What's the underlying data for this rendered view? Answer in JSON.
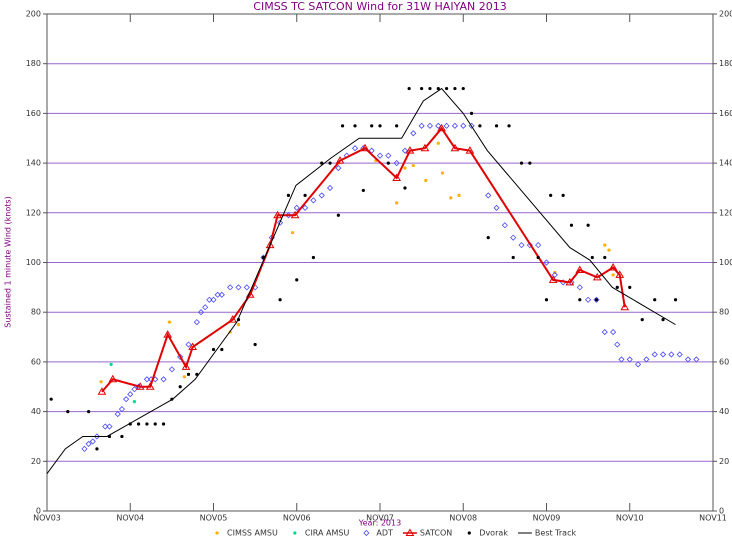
{
  "chart_data": {
    "type": "scatter",
    "title": "CIMSS TC SATCON Wind for  31W HAIYAN 2013",
    "x_label": "Year: 2013",
    "y_label": "Sustained 1 minute Wind (knots)",
    "xlim": [
      3,
      11
    ],
    "xticks": [
      {
        "value": 3,
        "label": "NOV03"
      },
      {
        "value": 4,
        "label": "NOV04"
      },
      {
        "value": 5,
        "label": "NOV05"
      },
      {
        "value": 6,
        "label": "NOV06"
      },
      {
        "value": 7,
        "label": "NOV07"
      },
      {
        "value": 8,
        "label": "NOV08"
      },
      {
        "value": 9,
        "label": "NOV09"
      },
      {
        "value": 10,
        "label": "NOV10"
      },
      {
        "value": 11,
        "label": "NOV11"
      }
    ],
    "ylim": [
      0,
      200
    ],
    "yticks": [
      0,
      20,
      40,
      60,
      80,
      100,
      120,
      140,
      160,
      180,
      200
    ],
    "grid": true,
    "series": [
      {
        "name": "CIMSS AMSU",
        "color": "#ffb000",
        "marker": "dot",
        "line": false,
        "x": [
          3.65,
          4.47,
          4.65,
          5.2,
          5.3,
          5.95,
          6.5,
          6.95,
          7.2,
          7.3,
          7.4,
          7.55,
          7.7,
          7.75,
          7.85,
          7.95,
          9.1,
          9.7,
          9.75,
          9.8
        ],
        "values": [
          52,
          76,
          54,
          72,
          75,
          112,
          140,
          141,
          124,
          138,
          139,
          133,
          148,
          136,
          126,
          127,
          96,
          107,
          105,
          95
        ]
      },
      {
        "name": "CIRA AMSU",
        "color": "#00d890",
        "marker": "dot",
        "line": false,
        "x": [
          3.77,
          4.05
        ],
        "values": [
          59,
          44
        ]
      },
      {
        "name": "ADT",
        "color": "#4848ff",
        "marker": "diamond",
        "line": false,
        "x": [
          3.45,
          3.5,
          3.55,
          3.6,
          3.7,
          3.75,
          3.85,
          3.9,
          3.95,
          4.0,
          4.05,
          4.1,
          4.2,
          4.25,
          4.3,
          4.4,
          4.5,
          4.6,
          4.7,
          4.8,
          4.85,
          4.9,
          4.95,
          5.0,
          5.05,
          5.1,
          5.2,
          5.3,
          5.4,
          5.5,
          5.6,
          5.7,
          5.8,
          5.9,
          6.0,
          6.1,
          6.2,
          6.3,
          6.4,
          6.5,
          6.6,
          6.7,
          6.8,
          6.9,
          7.0,
          7.1,
          7.2,
          7.3,
          7.4,
          7.5,
          7.6,
          7.7,
          7.8,
          7.9,
          8.0,
          8.1,
          8.3,
          8.4,
          8.5,
          8.6,
          8.7,
          8.8,
          8.9,
          9.0,
          9.1,
          9.2,
          9.3,
          9.4,
          9.5,
          9.6,
          9.7,
          9.8,
          9.85,
          9.9,
          10.0,
          10.1,
          10.2,
          10.3,
          10.4,
          10.5,
          10.6,
          10.7,
          10.8
        ],
        "values": [
          25,
          27,
          28,
          30,
          34,
          34,
          39,
          41,
          45,
          47,
          49,
          50,
          53,
          53,
          53,
          53,
          57,
          62,
          67,
          76,
          80,
          82,
          85,
          85,
          87,
          87,
          90,
          90,
          90,
          90,
          102,
          110,
          116,
          119,
          122,
          122,
          125,
          127,
          130,
          138,
          143,
          146,
          146,
          145,
          143,
          143,
          140,
          145,
          152,
          155,
          155,
          155,
          155,
          155,
          155,
          155,
          127,
          122,
          115,
          110,
          107,
          107,
          107,
          100,
          95,
          92,
          92,
          90,
          85,
          85,
          72,
          72,
          67,
          61,
          61,
          59,
          61,
          63,
          63,
          63,
          63,
          61,
          61
        ]
      },
      {
        "name": "SATCON",
        "color": "#e00000",
        "marker": "triangle",
        "line": true,
        "x": [
          3.66,
          3.79,
          4.12,
          4.24,
          4.45,
          4.67,
          4.75,
          5.23,
          5.44,
          5.68,
          5.77,
          5.98,
          6.52,
          6.82,
          7.2,
          7.36,
          7.54,
          7.74,
          7.9,
          8.08,
          9.08,
          9.28,
          9.4,
          9.61,
          9.8,
          9.88,
          9.94
        ],
        "values": [
          48,
          53,
          50,
          50,
          71,
          58,
          66,
          77,
          87,
          107,
          119,
          119,
          141,
          146,
          134,
          145,
          146,
          154,
          146,
          145,
          93,
          92,
          97,
          94,
          98,
          95,
          82
        ]
      },
      {
        "name": "Dvorak",
        "color": "#000000",
        "marker": "dot",
        "line": false,
        "x": [
          3.05,
          3.25,
          3.5,
          3.6,
          3.75,
          3.9,
          4.0,
          4.1,
          4.2,
          4.3,
          4.4,
          4.5,
          4.6,
          4.7,
          4.8,
          5.0,
          5.1,
          5.3,
          5.5,
          5.6,
          5.8,
          5.9,
          6.0,
          6.1,
          6.2,
          6.3,
          6.4,
          6.5,
          6.55,
          6.7,
          6.8,
          6.9,
          7.0,
          7.1,
          7.2,
          7.3,
          7.35,
          7.5,
          7.6,
          7.7,
          7.8,
          7.9,
          8.0,
          8.1,
          8.2,
          8.3,
          8.4,
          8.55,
          8.6,
          8.7,
          8.8,
          8.9,
          9.0,
          9.05,
          9.2,
          9.3,
          9.4,
          9.5,
          9.55,
          9.6,
          9.7,
          9.85,
          10.0,
          10.15,
          10.3,
          10.4,
          10.55
        ],
        "values": [
          45,
          40,
          40,
          25,
          30,
          30,
          35,
          35,
          35,
          35,
          35,
          45,
          50,
          55,
          55,
          65,
          65,
          77,
          67,
          102,
          85,
          127,
          93,
          127,
          102,
          140,
          140,
          119,
          155,
          155,
          129,
          155,
          155,
          140,
          155,
          130,
          170,
          170,
          170,
          170,
          170,
          170,
          170,
          160,
          155,
          110,
          155,
          155,
          102,
          140,
          140,
          102,
          85,
          127,
          127,
          115,
          85,
          115,
          102,
          85,
          102,
          90,
          90,
          77,
          85,
          77,
          85
        ]
      },
      {
        "name": "Best Track",
        "color": "#000000",
        "marker": "none",
        "line": true,
        "x": [
          3.0,
          3.22,
          3.43,
          3.72,
          4.51,
          4.78,
          5.28,
          5.99,
          6.41,
          6.75,
          7.26,
          7.52,
          7.74,
          8.0,
          8.29,
          9.28,
          9.52,
          9.79,
          10.55
        ],
        "values": [
          15,
          25,
          30,
          30,
          45,
          53,
          76,
          131,
          142,
          150,
          150,
          165,
          170,
          160,
          145,
          106,
          101,
          90,
          75
        ]
      }
    ]
  }
}
